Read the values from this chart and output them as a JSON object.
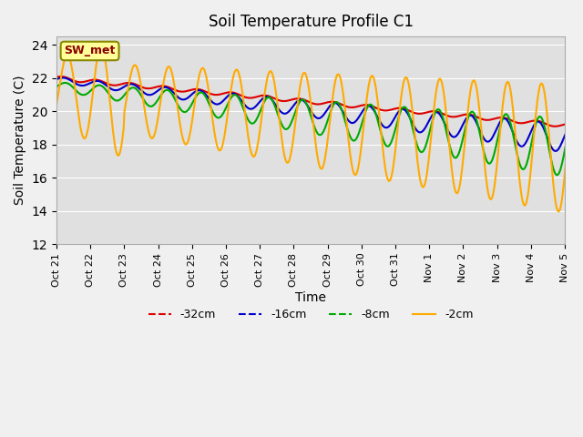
{
  "title": "Soil Temperature Profile C1",
  "xlabel": "Time",
  "ylabel": "Soil Temperature (C)",
  "ylim": [
    12,
    24.5
  ],
  "yticks": [
    12,
    14,
    16,
    18,
    20,
    22,
    24
  ],
  "fig_facecolor": "#f0f0f0",
  "ax_facecolor": "#e0e0e0",
  "series": [
    {
      "label": "-32cm",
      "color": "#dd0000",
      "linewidth": 1.5
    },
    {
      "label": "-16cm",
      "color": "#0000cc",
      "linewidth": 1.5
    },
    {
      "label": "-8cm",
      "color": "#00aa00",
      "linewidth": 1.5
    },
    {
      "label": "-2cm",
      "color": "#ffaa00",
      "linewidth": 1.5
    }
  ],
  "xtick_labels": [
    "Oct 21",
    "Oct 22",
    "Oct 23",
    "Oct 24",
    "Oct 25",
    "Oct 26",
    "Oct 27",
    "Oct 28",
    "Oct 29",
    "Oct 30",
    "Oct 31",
    "Nov 1",
    "Nov 2",
    "Nov 3",
    "Nov 4",
    "Nov 5"
  ],
  "annotation_text": "SW_met",
  "n_days": 16,
  "pts_per_day": 48
}
